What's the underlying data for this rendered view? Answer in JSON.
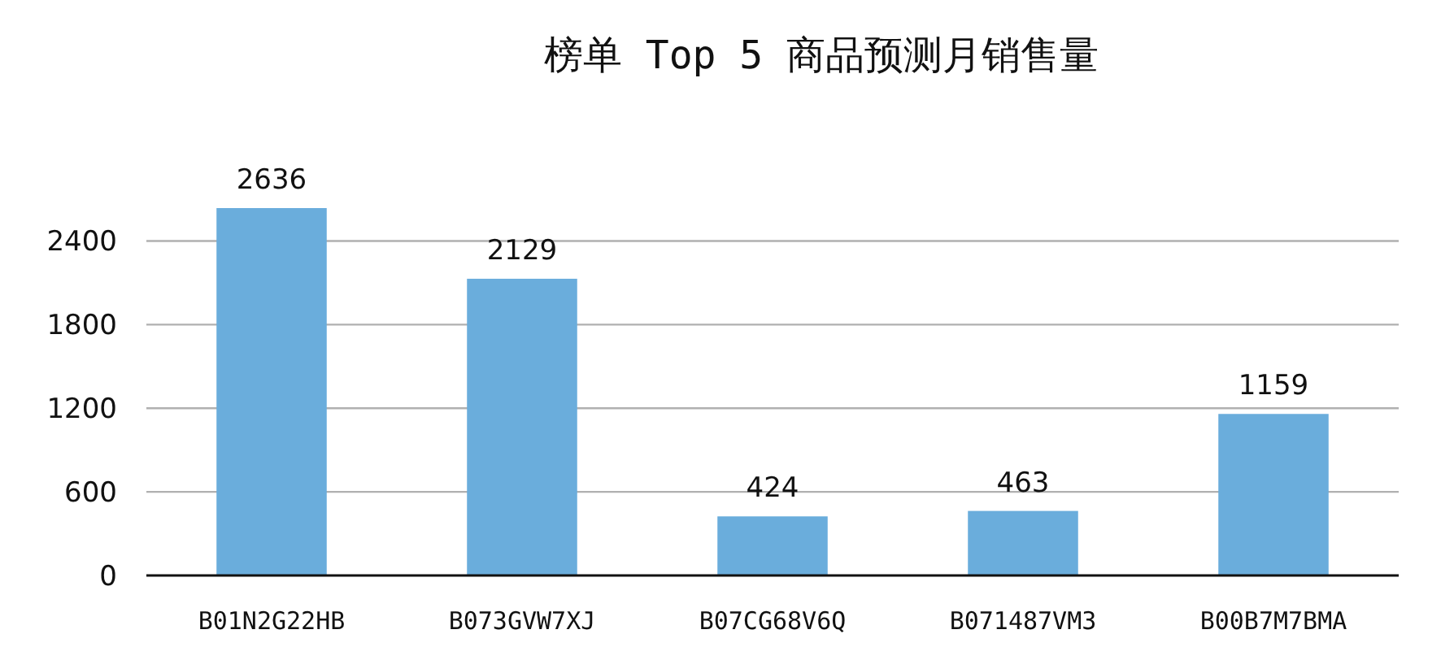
{
  "chart_data": {
    "type": "bar",
    "title": "榜单 Top 5 商品预测月销售量",
    "categories": [
      "B01N2G22HB",
      "B073GVW7XJ",
      "B07CG68V6Q",
      "B071487VM3",
      "B00B7M7BMA"
    ],
    "values": [
      2636,
      2129,
      424,
      463,
      1159
    ],
    "color": "#6aaddc",
    "ylim": [
      0,
      2636
    ],
    "yticks": [
      0,
      600,
      1200,
      1800,
      2400
    ],
    "grid": "y",
    "data_labels": true
  }
}
